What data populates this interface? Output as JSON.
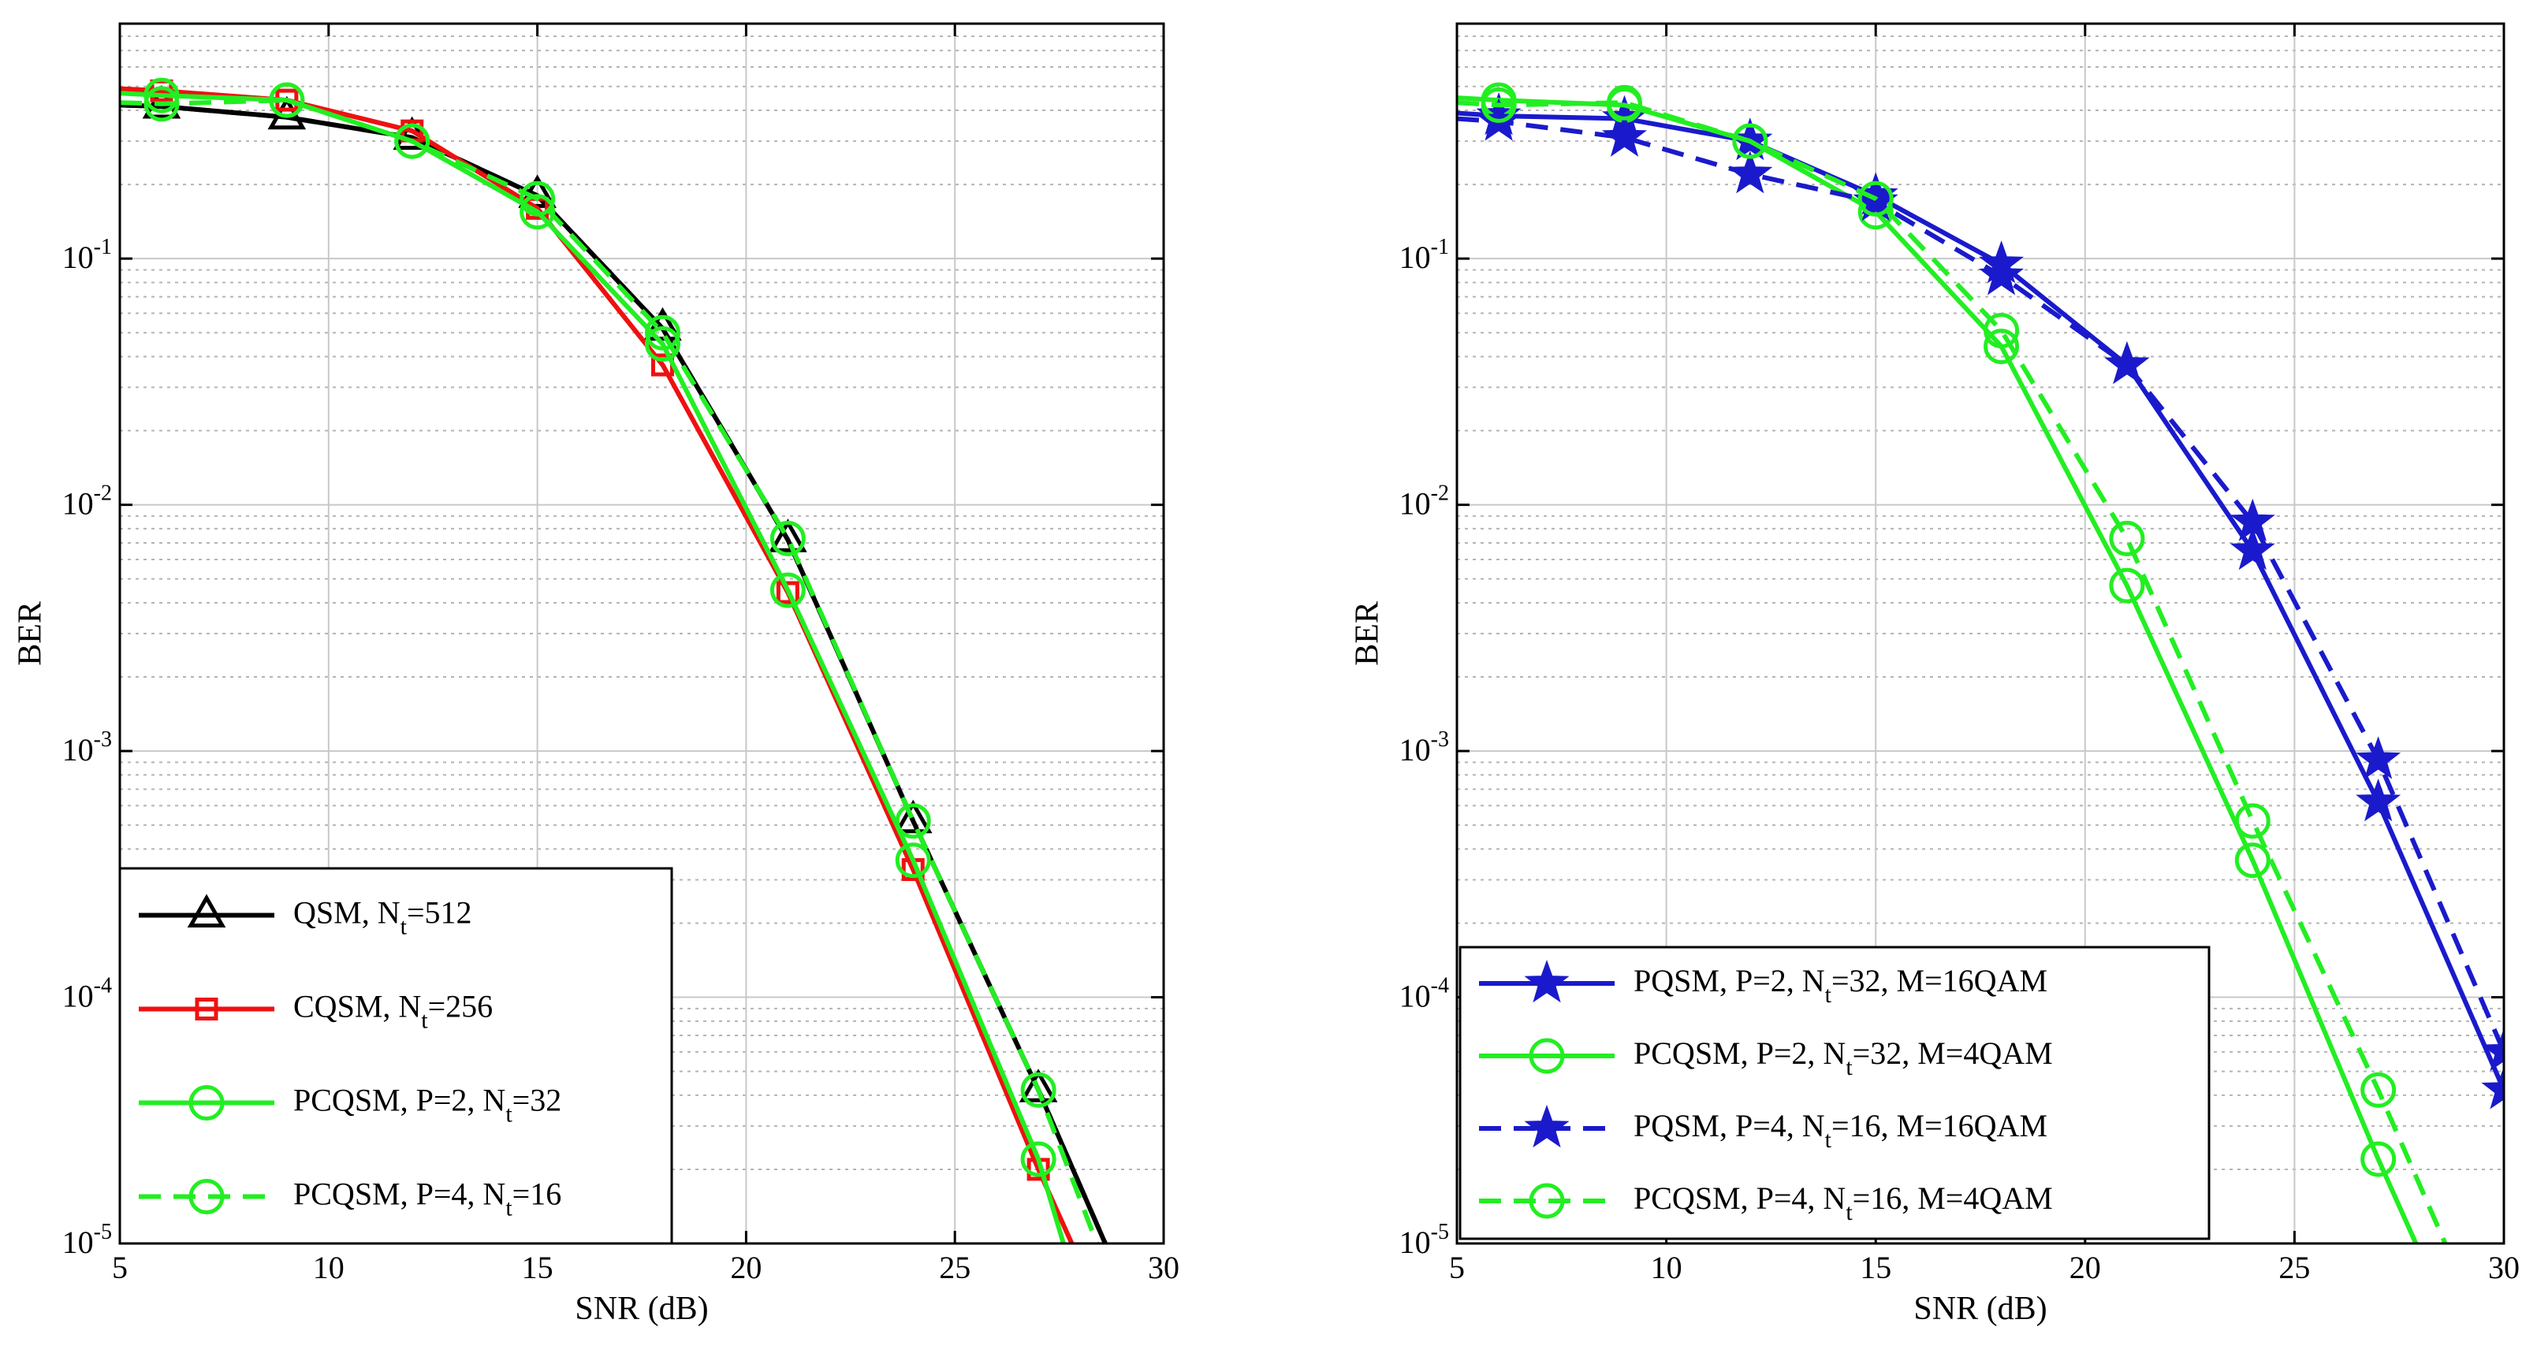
{
  "chart_data": [
    {
      "type": "line",
      "yscale": "log",
      "xlabel": "SNR (dB)",
      "ylabel": "BER",
      "xlim": [
        5,
        30
      ],
      "ylim": [
        1e-05,
        0.9
      ],
      "x_ticks": [
        5,
        10,
        15,
        20,
        25,
        30
      ],
      "x_tick_labels": [
        "5",
        "10",
        "15",
        "20",
        "25",
        "30"
      ],
      "y_ticks": [
        {
          "value": 0.1,
          "base": "10",
          "exp": "-1"
        },
        {
          "value": 0.01,
          "base": "10",
          "exp": "-2"
        },
        {
          "value": 0.001,
          "base": "10",
          "exp": "-3"
        },
        {
          "value": 0.0001,
          "base": "10",
          "exp": "-4"
        },
        {
          "value": 1e-05,
          "base": "10",
          "exp": "-5"
        }
      ],
      "grid": true,
      "legend_position": "bottom-left",
      "series": [
        {
          "name": "QSM, N_t=512",
          "label_main": "QSM, N",
          "label_sub": "t",
          "label_tail": "=512",
          "color": "#000000",
          "dash": "solid",
          "marker": "triangle",
          "x": [
            5,
            6,
            9,
            12,
            15,
            18,
            21,
            24,
            27,
            28.6
          ],
          "y": [
            0.42,
            0.415,
            0.375,
            0.31,
            0.18,
            0.052,
            0.0072,
            0.00052,
            4.2e-05,
            1e-05
          ]
        },
        {
          "name": "QSM, N_t=512 (dashed)",
          "legend": false,
          "color": "#000000",
          "dash": "dashed",
          "marker": "none",
          "x": [
            5,
            6,
            9,
            12,
            15,
            18,
            21,
            24,
            27,
            28.6
          ],
          "y": [
            0.42,
            0.415,
            0.375,
            0.31,
            0.18,
            0.052,
            0.0072,
            0.00052,
            4.2e-05,
            1e-05
          ]
        },
        {
          "name": "CQSM, N_t=256",
          "label_main": "CQSM, N",
          "label_sub": "t",
          "label_tail": "=256",
          "color": "#ee1111",
          "dash": "solid",
          "marker": "square",
          "x": [
            5,
            6,
            9,
            12,
            15,
            18,
            21,
            24,
            27,
            27.8
          ],
          "y": [
            0.49,
            0.48,
            0.44,
            0.33,
            0.16,
            0.037,
            0.0044,
            0.00033,
            2e-05,
            1e-05
          ]
        },
        {
          "name": "PCQSM, P=2, N_t=32",
          "label_main": "PCQSM, P=2, N",
          "label_sub": "t",
          "label_tail": "=32",
          "color": "#22ee22",
          "dash": "solid",
          "marker": "circle",
          "x": [
            5,
            6,
            9,
            12,
            15,
            18,
            21,
            24,
            27,
            27.6
          ],
          "y": [
            0.47,
            0.46,
            0.44,
            0.3,
            0.155,
            0.045,
            0.0045,
            0.00036,
            2.2e-05,
            1e-05
          ]
        },
        {
          "name": "PCQSM, P=4, N_t=16",
          "label_main": "PCQSM, P=4, N",
          "label_sub": "t",
          "label_tail": "=16",
          "color": "#22ee22",
          "dash": "dashed",
          "marker": "circle",
          "x": [
            5,
            6,
            9,
            12,
            15,
            18,
            21,
            24,
            27,
            28.4
          ],
          "y": [
            0.43,
            0.425,
            0.44,
            0.3,
            0.175,
            0.05,
            0.0073,
            0.00052,
            4.2e-05,
            1e-05
          ]
        }
      ]
    },
    {
      "type": "line",
      "yscale": "log",
      "xlabel": "SNR (dB)",
      "ylabel": "BER",
      "xlim": [
        5,
        30
      ],
      "ylim": [
        1e-05,
        0.9
      ],
      "x_ticks": [
        5,
        10,
        15,
        20,
        25,
        30
      ],
      "x_tick_labels": [
        "5",
        "10",
        "15",
        "20",
        "25",
        "30"
      ],
      "y_ticks": [
        {
          "value": 0.1,
          "base": "10",
          "exp": "-1"
        },
        {
          "value": 0.01,
          "base": "10",
          "exp": "-2"
        },
        {
          "value": 0.001,
          "base": "10",
          "exp": "-3"
        },
        {
          "value": 0.0001,
          "base": "10",
          "exp": "-4"
        },
        {
          "value": 1e-05,
          "base": "10",
          "exp": "-5"
        }
      ],
      "grid": true,
      "legend_position": "bottom-left",
      "series": [
        {
          "name": "PQSM, P=2, N_t=32, M=16QAM",
          "label_main": "PQSM, P=2, N",
          "label_sub": "t",
          "label_tail": "=32, M=16QAM",
          "color": "#1a1acc",
          "dash": "solid",
          "marker": "star",
          "x": [
            5,
            6,
            9,
            12,
            15,
            18,
            21,
            24,
            27,
            30
          ],
          "y": [
            0.39,
            0.38,
            0.37,
            0.3,
            0.18,
            0.095,
            0.037,
            0.0065,
            0.00062,
            4.2e-05
          ]
        },
        {
          "name": "PCQSM, P=2, N_t=32, M=4QAM",
          "label_main": "PCQSM, P=2, N",
          "label_sub": "t",
          "label_tail": "=32, M=4QAM",
          "color": "#22ee22",
          "dash": "solid",
          "marker": "circle",
          "x": [
            5,
            6,
            9,
            12,
            15,
            18,
            21,
            24,
            27,
            27.9
          ],
          "y": [
            0.45,
            0.44,
            0.42,
            0.3,
            0.155,
            0.044,
            0.0047,
            0.00036,
            2.2e-05,
            1e-05
          ]
        },
        {
          "name": "PQSM, P=4, N_t=16, M=16QAM",
          "label_main": "PQSM, P=4, N",
          "label_sub": "t",
          "label_tail": "=16, M=16QAM",
          "color": "#1a1acc",
          "dash": "dashed",
          "marker": "star",
          "x": [
            5,
            6,
            9,
            12,
            15,
            18,
            21,
            24,
            27,
            30
          ],
          "y": [
            0.37,
            0.36,
            0.31,
            0.22,
            0.17,
            0.085,
            0.037,
            0.0085,
            0.00092,
            6e-05
          ]
        },
        {
          "name": "PCQSM, P=4, N_t=16, M=4QAM",
          "label_main": "PCQSM, P=4, N",
          "label_sub": "t",
          "label_tail": "=16, M=4QAM",
          "color": "#22ee22",
          "dash": "dashed",
          "marker": "circle",
          "x": [
            5,
            6,
            9,
            12,
            15,
            18,
            21,
            24,
            27,
            28.6
          ],
          "y": [
            0.43,
            0.42,
            0.43,
            0.3,
            0.175,
            0.051,
            0.0073,
            0.00052,
            4.2e-05,
            1e-05
          ]
        }
      ]
    }
  ]
}
